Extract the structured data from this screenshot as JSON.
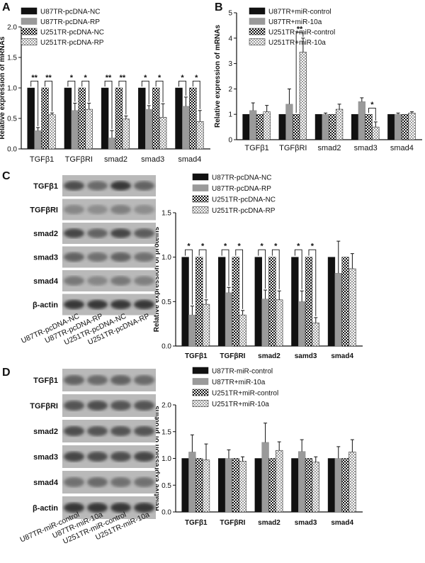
{
  "colors": {
    "s0": "#111111",
    "s1": "#9a9a9a",
    "blot_bg": "#b9b9b9",
    "band": "#2a2a2a"
  },
  "panels": {
    "A": "A",
    "B": "B",
    "C": "C",
    "D": "D"
  },
  "blots": {
    "C": {
      "rows": [
        "TGFβ1",
        "TGFβRI",
        "smad2",
        "smad3",
        "smad4",
        "β-actin"
      ],
      "lanes": [
        "U87TR-pcDNA-NC",
        "U87TR-pcDNA-RP",
        "U251TR-pcDNA-NC",
        "U251TR-pcDNA-RP"
      ]
    },
    "D": {
      "rows": [
        "TGFβ1",
        "TGFβRI",
        "smad2",
        "smad3",
        "smad4",
        "β-actin"
      ],
      "lanes": [
        "U87TR-miR-control",
        "U87TR-miR-10a",
        "U251TR-miR-control",
        "U251TR-miR-10a"
      ]
    }
  },
  "chart_data": [
    {
      "id": "A",
      "type": "bar",
      "ylabel": "Relative expression of mRNAs",
      "ylim": [
        0,
        2.0
      ],
      "yticks": [
        "0.0",
        "0.5",
        "1.0",
        "1.5",
        "2.0"
      ],
      "categories": [
        "TGFβ1",
        "TGFβRI",
        "smad2",
        "smad3",
        "smad4"
      ],
      "legend": "top-left",
      "series": [
        {
          "name": "U87TR-pcDNA-NC",
          "values": [
            1.0,
            1.0,
            1.0,
            1.0,
            1.0
          ],
          "err": [
            0,
            0,
            0,
            0,
            0
          ]
        },
        {
          "name": "U87TR-pcDNA-RP",
          "values": [
            0.3,
            0.63,
            0.18,
            0.65,
            0.7
          ],
          "err": [
            0.05,
            0.12,
            0.12,
            0.06,
            0.15
          ]
        },
        {
          "name": "U251TR-pcDNA-NC",
          "values": [
            1.0,
            1.0,
            1.0,
            1.0,
            1.0
          ],
          "err": [
            0,
            0,
            0,
            0,
            0
          ]
        },
        {
          "name": "U251TR-pcDNA-RP",
          "values": [
            0.56,
            0.65,
            0.49,
            0.52,
            0.45
          ],
          "err": [
            0.03,
            0.1,
            0.05,
            0.22,
            0.18
          ]
        }
      ],
      "significance": [
        {
          "cat": 0,
          "left": "**",
          "right": "**"
        },
        {
          "cat": 1,
          "left": "*",
          "right": "*"
        },
        {
          "cat": 2,
          "left": "**",
          "right": "**"
        },
        {
          "cat": 3,
          "left": "*",
          "right": "*"
        },
        {
          "cat": 4,
          "left": "*",
          "right": "*"
        }
      ]
    },
    {
      "id": "B",
      "type": "bar",
      "ylabel": "Relative expression of mRNAs",
      "ylim": [
        0,
        5
      ],
      "yticks": [
        "0",
        "1",
        "2",
        "3",
        "4",
        "5"
      ],
      "categories": [
        "TGFβ1",
        "TGFβRI",
        "smad2",
        "smad3",
        "smad4"
      ],
      "legend": "top-left",
      "series": [
        {
          "name": "U87TR+miR-control",
          "values": [
            1.0,
            1.0,
            1.0,
            1.0,
            1.0
          ],
          "err": [
            0,
            0,
            0,
            0,
            0
          ]
        },
        {
          "name": "U87TR+miR-10a",
          "values": [
            1.15,
            1.4,
            1.0,
            1.5,
            1.0
          ],
          "err": [
            0.3,
            0.6,
            0.05,
            0.15,
            0.05
          ]
        },
        {
          "name": "U251TR+miR-control",
          "values": [
            1.0,
            1.0,
            1.0,
            1.0,
            1.0
          ],
          "err": [
            0,
            0,
            0,
            0,
            0
          ]
        },
        {
          "name": "U251TR+miR-10a",
          "values": [
            1.1,
            3.45,
            1.2,
            0.5,
            1.05
          ],
          "err": [
            0.25,
            0.55,
            0.2,
            0.2,
            0.05
          ]
        }
      ],
      "significance": [
        {
          "cat": 1,
          "left": "",
          "right": "**"
        },
        {
          "cat": 3,
          "left": "",
          "right": "*"
        }
      ]
    },
    {
      "id": "C",
      "type": "bar",
      "ylabel": "Relative expression of proteins",
      "ylim": [
        0,
        1.5
      ],
      "yticks": [
        "0.0",
        "0.5",
        "1.0",
        "1.5"
      ],
      "categories": [
        "TGFβ1",
        "TGFβRI",
        "smad2",
        "samd3",
        "smad4"
      ],
      "legend": "top",
      "series": [
        {
          "name": "U87TR-pcDNA-NC",
          "values": [
            1.0,
            1.0,
            1.0,
            1.0,
            1.0
          ],
          "err": [
            0,
            0,
            0,
            0,
            0
          ]
        },
        {
          "name": "U87TR-pcDNA-RP",
          "values": [
            0.35,
            0.6,
            0.53,
            0.5,
            0.82
          ],
          "err": [
            0.1,
            0.06,
            0.1,
            0.12,
            0.36
          ]
        },
        {
          "name": "U251TR-pcDNA-NC",
          "values": [
            1.0,
            1.0,
            1.0,
            1.0,
            1.0
          ],
          "err": [
            0,
            0,
            0,
            0,
            0
          ]
        },
        {
          "name": "U251TR-pcDNA-RP",
          "values": [
            0.47,
            0.35,
            0.52,
            0.26,
            0.87
          ],
          "err": [
            0.05,
            0.05,
            0.1,
            0.06,
            0.17
          ]
        }
      ],
      "significance": [
        {
          "cat": 0,
          "left": "*",
          "right": "*"
        },
        {
          "cat": 1,
          "left": "*",
          "right": "*"
        },
        {
          "cat": 2,
          "left": "*",
          "right": "*"
        },
        {
          "cat": 3,
          "left": "*",
          "right": "*"
        }
      ]
    },
    {
      "id": "D",
      "type": "bar",
      "ylabel": "Relative expression of proteins",
      "ylim": [
        0,
        2.0
      ],
      "yticks": [
        "0.0",
        "0.5",
        "1.0",
        "1.5",
        "2.0"
      ],
      "categories": [
        "TGFβ1",
        "TGFβRI",
        "smad2",
        "smad3",
        "smad4"
      ],
      "legend": "top",
      "series": [
        {
          "name": "U87TR-miR-control",
          "values": [
            1.0,
            1.0,
            1.0,
            1.0,
            1.0
          ],
          "err": [
            0,
            0,
            0,
            0,
            0
          ]
        },
        {
          "name": "U87TR+miR-10a",
          "values": [
            1.12,
            1.0,
            1.3,
            1.13,
            1.0
          ],
          "err": [
            0.32,
            0.16,
            0.36,
            0.22,
            0.22
          ]
        },
        {
          "name": "U251TR+miR-control",
          "values": [
            1.0,
            1.0,
            1.0,
            1.0,
            1.0
          ],
          "err": [
            0,
            0,
            0,
            0,
            0
          ]
        },
        {
          "name": "U251TR+miR-10a",
          "values": [
            0.97,
            0.95,
            1.15,
            0.93,
            1.12
          ],
          "err": [
            0.3,
            0.08,
            0.16,
            0.1,
            0.23
          ]
        }
      ],
      "significance": []
    }
  ]
}
